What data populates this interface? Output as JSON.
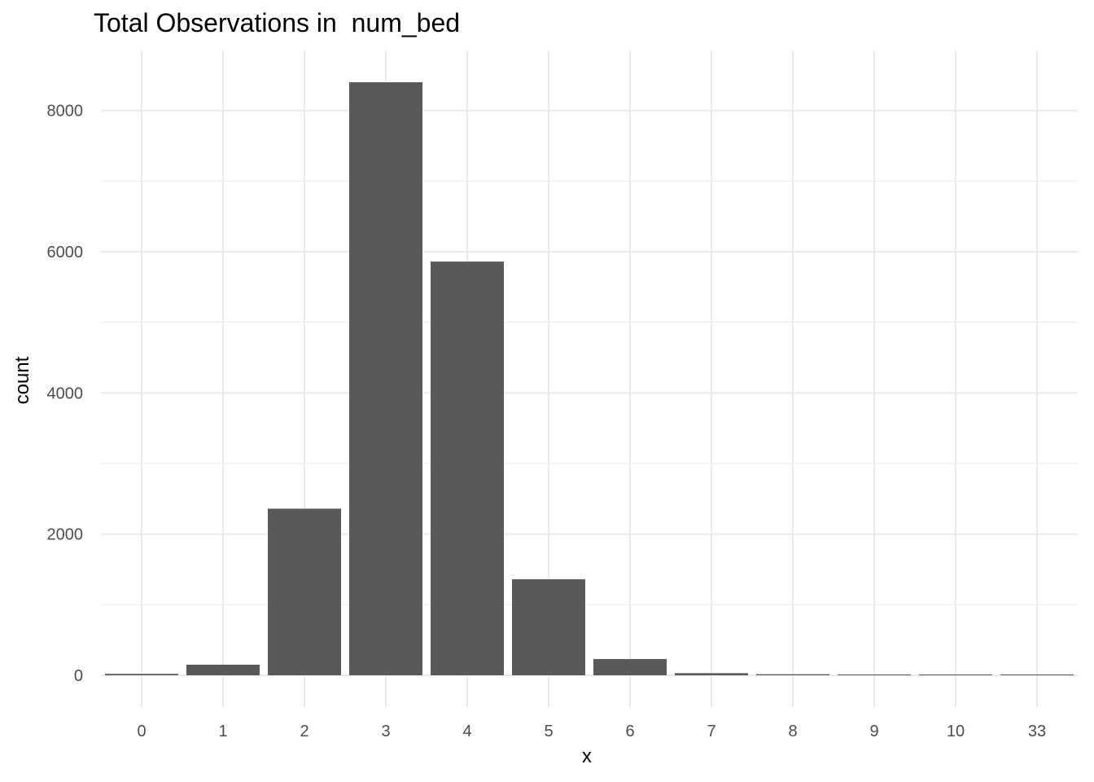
{
  "chart_data": {
    "type": "bar",
    "title": "Total Observations in  num_bed",
    "xlabel": "x",
    "ylabel": "count",
    "categories": [
      "0",
      "1",
      "2",
      "3",
      "4",
      "5",
      "6",
      "7",
      "8",
      "9",
      "10",
      "33"
    ],
    "values": [
      20,
      150,
      2360,
      8400,
      5860,
      1360,
      230,
      30,
      15,
      5,
      5,
      5
    ],
    "ylim": [
      -450,
      8850
    ],
    "yticks": [
      0,
      2000,
      4000,
      6000,
      8000
    ],
    "yminor": [
      1000,
      3000,
      5000,
      7000
    ],
    "grid": true,
    "legend": "none",
    "bar_color": "#595959",
    "grid_color": "#ebebeb"
  }
}
